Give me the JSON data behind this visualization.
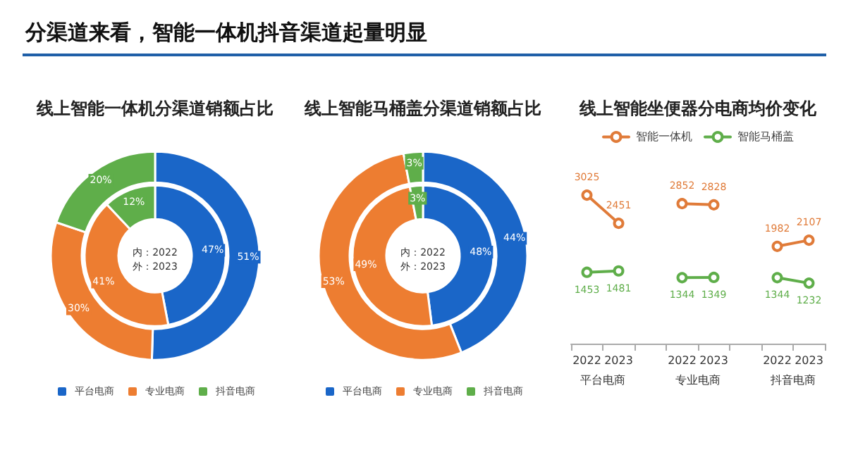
{
  "chart_data": [
    {
      "type": "other",
      "title": "分渠道来看，智能一体机抖音渠道起量明显"
    },
    {
      "type": "donut",
      "title": "线上智能一体机分渠道销额占比",
      "categories": [
        "平台电商",
        "专业电商",
        "抖音电商"
      ],
      "colors": [
        "#1a66c8",
        "#ed7d31",
        "#5fae4a"
      ],
      "series": [
        {
          "values": [
            47,
            41,
            12
          ],
          "value_labels": [
            "47%",
            "41%",
            "12%"
          ]
        },
        {
          "values": [
            51,
            30,
            20
          ],
          "value_labels": [
            "51%",
            "30%",
            "20%"
          ]
        }
      ],
      "legend": "bottom",
      "annotations": [
        "内：2022",
        "外：2023"
      ]
    },
    {
      "type": "donut",
      "title": "线上智能马桶盖分渠道销额占比",
      "categories": [
        "平台电商",
        "专业电商",
        "抖音电商"
      ],
      "colors": [
        "#1a66c8",
        "#ed7d31",
        "#5fae4a"
      ],
      "series": [
        {
          "values": [
            48,
            49,
            3
          ],
          "value_labels": [
            "48%",
            "49%",
            "3%"
          ]
        },
        {
          "values": [
            44,
            53,
            3
          ],
          "value_labels": [
            "44%",
            "53%",
            "3%"
          ]
        }
      ],
      "legend": "bottom",
      "annotations": [
        "内：2022",
        "外：2023"
      ]
    },
    {
      "type": "line",
      "title": "线上智能坐便器分电商均价变化",
      "categories": [
        "2022",
        "2023",
        null,
        "2022",
        "2023",
        null,
        "2022",
        "2023"
      ],
      "series": [
        {
          "name": "智能一体机",
          "color": "#e07b39",
          "values": [
            3025,
            2451,
            null,
            2852,
            2828,
            null,
            1982,
            2107
          ]
        },
        {
          "name": "智能马桶盖",
          "color": "#5fae4a",
          "values": [
            1453,
            1481,
            null,
            1344,
            1349,
            null,
            1344,
            1232
          ]
        }
      ],
      "data_labels": true,
      "marker": "circle",
      "legend": "top",
      "grid": false,
      "tick_labels": "x",
      "annotations": [
        "平台电商",
        "专业电商",
        "抖音电商"
      ]
    }
  ]
}
